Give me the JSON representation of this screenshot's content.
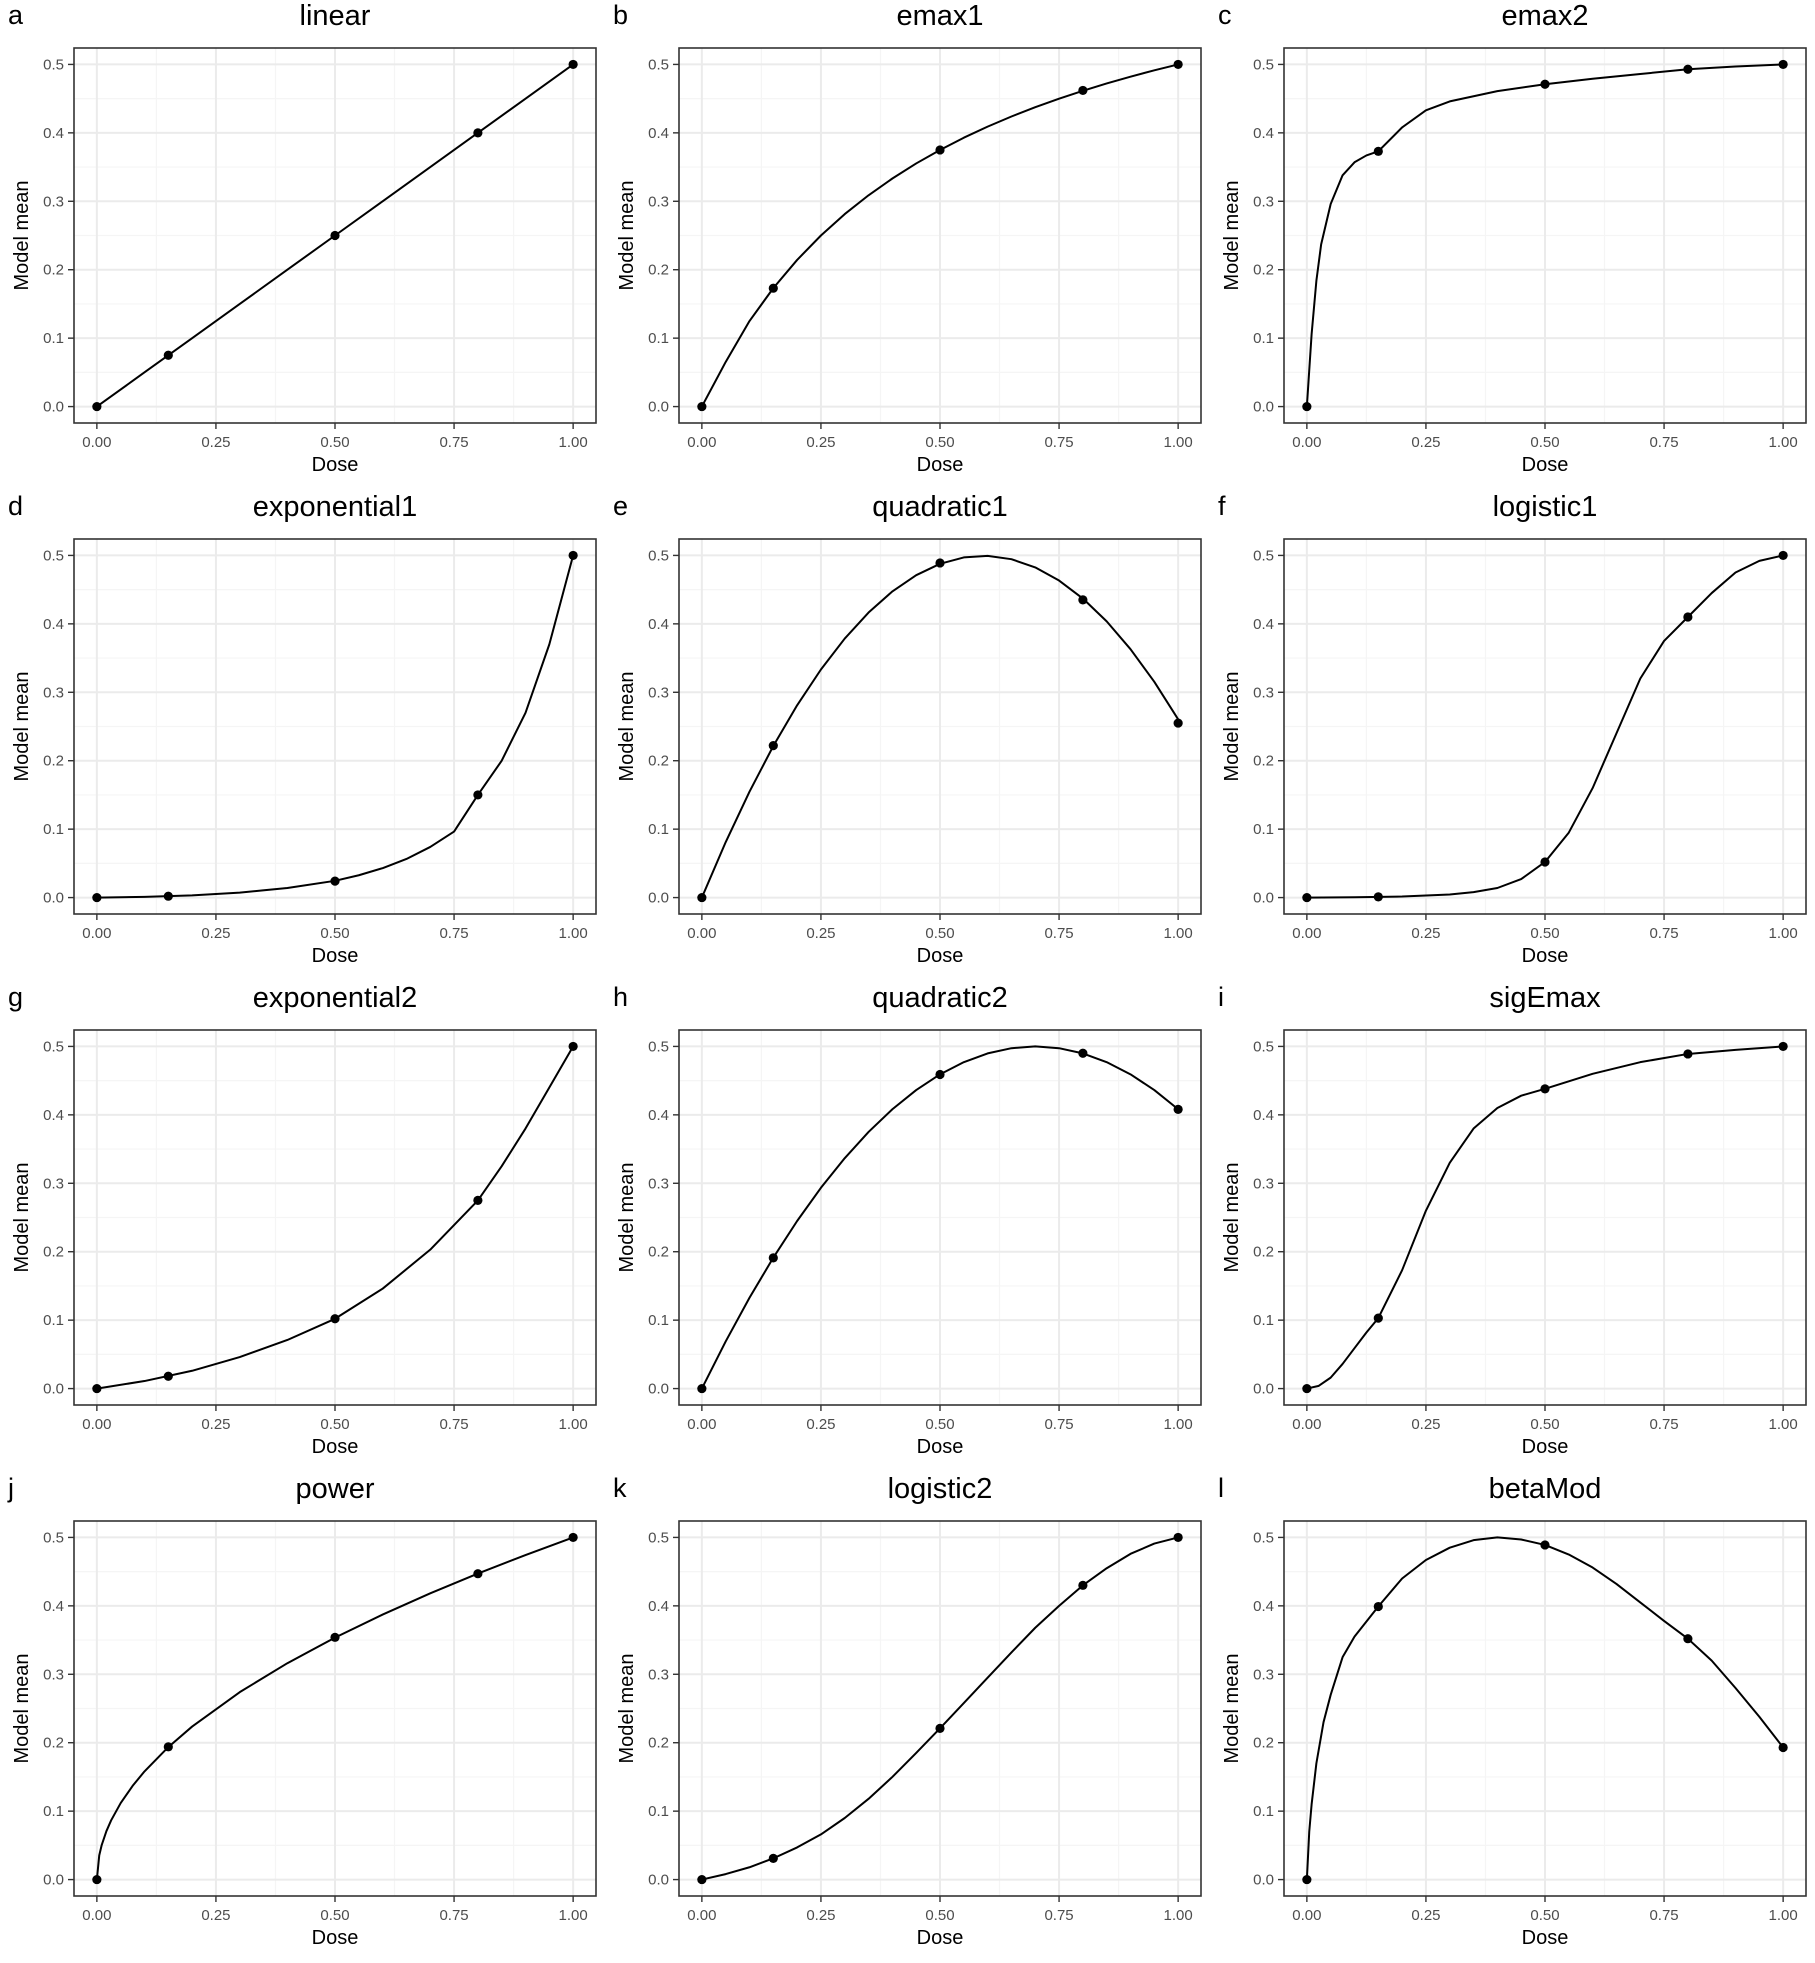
{
  "figure": {
    "xlabel": "Dose",
    "ylabel": "Model mean",
    "colors": {
      "background": "#ffffff",
      "panel_border": "#333333",
      "grid_major": "#ebebeb",
      "grid_minor": "#f5f5f5",
      "line": "#000000",
      "point": "#000000",
      "tick_text": "#4d4d4d"
    }
  },
  "chart_data": [
    {
      "panel": "a",
      "title": "linear",
      "type": "line",
      "xlabel": "Dose",
      "ylabel": "Model mean",
      "xlim": [
        0,
        1
      ],
      "ylim": [
        0,
        0.5
      ],
      "xticks": [
        0,
        0.25,
        0.5,
        0.75,
        1
      ],
      "xtick_labels": [
        "0.00",
        "0.25",
        "0.50",
        "0.75",
        "1.00"
      ],
      "yticks": [
        0,
        0.1,
        0.2,
        0.3,
        0.4,
        0.5
      ],
      "ytick_labels": [
        "0.0",
        "0.1",
        "0.2",
        "0.3",
        "0.4",
        "0.5"
      ],
      "grid": true,
      "points": {
        "x": [
          0,
          0.15,
          0.5,
          0.8,
          1
        ],
        "y": [
          0,
          0.075,
          0.25,
          0.4,
          0.5
        ]
      },
      "curve": {
        "x": [
          0,
          0.1,
          0.2,
          0.3,
          0.4,
          0.5,
          0.6,
          0.7,
          0.8,
          0.9,
          1
        ],
        "y": [
          0,
          0.05,
          0.1,
          0.15,
          0.2,
          0.25,
          0.3,
          0.35,
          0.4,
          0.45,
          0.5
        ]
      }
    },
    {
      "panel": "b",
      "title": "emax1",
      "type": "line",
      "xlabel": "Dose",
      "ylabel": "Model mean",
      "xlim": [
        0,
        1
      ],
      "ylim": [
        0,
        0.5
      ],
      "xticks": [
        0,
        0.25,
        0.5,
        0.75,
        1
      ],
      "xtick_labels": [
        "0.00",
        "0.25",
        "0.50",
        "0.75",
        "1.00"
      ],
      "yticks": [
        0,
        0.1,
        0.2,
        0.3,
        0.4,
        0.5
      ],
      "ytick_labels": [
        "0.0",
        "0.1",
        "0.2",
        "0.3",
        "0.4",
        "0.5"
      ],
      "grid": true,
      "points": {
        "x": [
          0,
          0.15,
          0.5,
          0.8,
          1
        ],
        "y": [
          0,
          0.173,
          0.375,
          0.462,
          0.5
        ]
      },
      "curve": {
        "x": [
          0,
          0.05,
          0.1,
          0.15,
          0.2,
          0.25,
          0.3,
          0.35,
          0.4,
          0.45,
          0.5,
          0.55,
          0.6,
          0.65,
          0.7,
          0.75,
          0.8,
          0.85,
          0.9,
          0.95,
          1
        ],
        "y": [
          0,
          0.0652,
          0.125,
          0.1731,
          0.2143,
          0.25,
          0.2813,
          0.3088,
          0.3333,
          0.3553,
          0.375,
          0.3929,
          0.4091,
          0.4239,
          0.4375,
          0.45,
          0.4615,
          0.4722,
          0.4821,
          0.4914,
          0.5
        ]
      }
    },
    {
      "panel": "c",
      "title": "emax2",
      "type": "line",
      "xlabel": "Dose",
      "ylabel": "Model mean",
      "xlim": [
        0,
        1
      ],
      "ylim": [
        0,
        0.5
      ],
      "xticks": [
        0,
        0.25,
        0.5,
        0.75,
        1
      ],
      "xtick_labels": [
        "0.00",
        "0.25",
        "0.50",
        "0.75",
        "1.00"
      ],
      "yticks": [
        0,
        0.1,
        0.2,
        0.3,
        0.4,
        0.5
      ],
      "ytick_labels": [
        "0.0",
        "0.1",
        "0.2",
        "0.3",
        "0.4",
        "0.5"
      ],
      "grid": true,
      "points": {
        "x": [
          0,
          0.15,
          0.5,
          0.8,
          1
        ],
        "y": [
          0,
          0.373,
          0.471,
          0.493,
          0.5
        ]
      },
      "curve": {
        "x": [
          0,
          0.01,
          0.02,
          0.03,
          0.05,
          0.075,
          0.1,
          0.125,
          0.15,
          0.2,
          0.25,
          0.3,
          0.4,
          0.5,
          0.6,
          0.7,
          0.8,
          0.9,
          1
        ],
        "y": [
          0,
          0.106,
          0.184,
          0.237,
          0.296,
          0.338,
          0.357,
          0.367,
          0.373,
          0.408,
          0.433,
          0.446,
          0.461,
          0.471,
          0.479,
          0.486,
          0.493,
          0.497,
          0.5
        ]
      }
    },
    {
      "panel": "d",
      "title": "exponential1",
      "type": "line",
      "xlabel": "Dose",
      "ylabel": "Model mean",
      "xlim": [
        0,
        1
      ],
      "ylim": [
        0,
        0.5
      ],
      "xticks": [
        0,
        0.25,
        0.5,
        0.75,
        1
      ],
      "xtick_labels": [
        "0.00",
        "0.25",
        "0.50",
        "0.75",
        "1.00"
      ],
      "yticks": [
        0,
        0.1,
        0.2,
        0.3,
        0.4,
        0.5
      ],
      "ytick_labels": [
        "0.0",
        "0.1",
        "0.2",
        "0.3",
        "0.4",
        "0.5"
      ],
      "grid": true,
      "points": {
        "x": [
          0,
          0.15,
          0.5,
          0.8,
          1
        ],
        "y": [
          0,
          0.002,
          0.024,
          0.15,
          0.5
        ]
      },
      "curve": {
        "x": [
          0,
          0.1,
          0.2,
          0.3,
          0.4,
          0.5,
          0.55,
          0.6,
          0.65,
          0.7,
          0.75,
          0.8,
          0.85,
          0.9,
          0.95,
          1
        ],
        "y": [
          0,
          0.0011,
          0.0033,
          0.0073,
          0.014,
          0.0245,
          0.0326,
          0.043,
          0.0564,
          0.074,
          0.0965,
          0.15,
          0.2,
          0.27,
          0.37,
          0.5
        ]
      }
    },
    {
      "panel": "e",
      "title": "quadratic1",
      "type": "line",
      "xlabel": "Dose",
      "ylabel": "Model mean",
      "xlim": [
        0,
        1
      ],
      "ylim": [
        0,
        0.5
      ],
      "xticks": [
        0,
        0.25,
        0.5,
        0.75,
        1
      ],
      "xtick_labels": [
        "0.00",
        "0.25",
        "0.50",
        "0.75",
        "1.00"
      ],
      "yticks": [
        0,
        0.1,
        0.2,
        0.3,
        0.4,
        0.5
      ],
      "ytick_labels": [
        "0.0",
        "0.1",
        "0.2",
        "0.3",
        "0.4",
        "0.5"
      ],
      "grid": true,
      "points": {
        "x": [
          0,
          0.15,
          0.5,
          0.8,
          1
        ],
        "y": [
          0,
          0.222,
          0.489,
          0.435,
          0.255
        ]
      },
      "curve": {
        "x": [
          0,
          0.05,
          0.1,
          0.15,
          0.2,
          0.25,
          0.3,
          0.35,
          0.4,
          0.45,
          0.5,
          0.55,
          0.6,
          0.65,
          0.7,
          0.75,
          0.8,
          0.85,
          0.9,
          0.95,
          1
        ],
        "y": [
          0,
          0.081,
          0.1548,
          0.2215,
          0.281,
          0.3333,
          0.3785,
          0.4165,
          0.4474,
          0.4711,
          0.4877,
          0.4971,
          0.4994,
          0.4945,
          0.4825,
          0.4633,
          0.437,
          0.4036,
          0.363,
          0.3153,
          0.2605
        ]
      }
    },
    {
      "panel": "f",
      "title": "logistic1",
      "type": "line",
      "xlabel": "Dose",
      "ylabel": "Model mean",
      "xlim": [
        0,
        1
      ],
      "ylim": [
        0,
        0.5
      ],
      "xticks": [
        0,
        0.25,
        0.5,
        0.75,
        1
      ],
      "xtick_labels": [
        "0.00",
        "0.25",
        "0.50",
        "0.75",
        "1.00"
      ],
      "yticks": [
        0,
        0.1,
        0.2,
        0.3,
        0.4,
        0.5
      ],
      "ytick_labels": [
        "0.0",
        "0.1",
        "0.2",
        "0.3",
        "0.4",
        "0.5"
      ],
      "grid": true,
      "points": {
        "x": [
          0,
          0.15,
          0.5,
          0.8,
          1
        ],
        "y": [
          0,
          0.001,
          0.052,
          0.41,
          0.5
        ]
      },
      "curve": {
        "x": [
          0,
          0.1,
          0.2,
          0.3,
          0.35,
          0.4,
          0.45,
          0.5,
          0.55,
          0.6,
          0.65,
          0.7,
          0.75,
          0.8,
          0.85,
          0.9,
          0.95,
          1
        ],
        "y": [
          0,
          0.0005,
          0.0015,
          0.0045,
          0.008,
          0.014,
          0.027,
          0.052,
          0.095,
          0.16,
          0.24,
          0.32,
          0.375,
          0.41,
          0.445,
          0.475,
          0.492,
          0.5
        ]
      }
    },
    {
      "panel": "g",
      "title": "exponential2",
      "type": "line",
      "xlabel": "Dose",
      "ylabel": "Model mean",
      "xlim": [
        0,
        1
      ],
      "ylim": [
        0,
        0.5
      ],
      "xticks": [
        0,
        0.25,
        0.5,
        0.75,
        1
      ],
      "xtick_labels": [
        "0.00",
        "0.25",
        "0.50",
        "0.75",
        "1.00"
      ],
      "yticks": [
        0,
        0.1,
        0.2,
        0.3,
        0.4,
        0.5
      ],
      "ytick_labels": [
        "0.0",
        "0.1",
        "0.2",
        "0.3",
        "0.4",
        "0.5"
      ],
      "grid": true,
      "points": {
        "x": [
          0,
          0.15,
          0.5,
          0.8,
          1
        ],
        "y": [
          0,
          0.018,
          0.102,
          0.275,
          0.5
        ]
      },
      "curve": {
        "x": [
          0,
          0.1,
          0.2,
          0.3,
          0.4,
          0.5,
          0.6,
          0.7,
          0.8,
          0.85,
          0.9,
          0.95,
          1
        ],
        "y": [
          0,
          0.011,
          0.026,
          0.046,
          0.071,
          0.102,
          0.146,
          0.203,
          0.275,
          0.325,
          0.38,
          0.44,
          0.5
        ]
      }
    },
    {
      "panel": "h",
      "title": "quadratic2",
      "type": "line",
      "xlabel": "Dose",
      "ylabel": "Model mean",
      "xlim": [
        0,
        1
      ],
      "ylim": [
        0,
        0.5
      ],
      "xticks": [
        0,
        0.25,
        0.5,
        0.75,
        1
      ],
      "xtick_labels": [
        "0.00",
        "0.25",
        "0.50",
        "0.75",
        "1.00"
      ],
      "yticks": [
        0,
        0.1,
        0.2,
        0.3,
        0.4,
        0.5
      ],
      "ytick_labels": [
        "0.0",
        "0.1",
        "0.2",
        "0.3",
        "0.4",
        "0.5"
      ],
      "grid": true,
      "points": {
        "x": [
          0,
          0.15,
          0.5,
          0.8,
          1
        ],
        "y": [
          0,
          0.191,
          0.459,
          0.49,
          0.408
        ]
      },
      "curve": {
        "x": [
          0,
          0.05,
          0.1,
          0.15,
          0.2,
          0.25,
          0.3,
          0.35,
          0.4,
          0.45,
          0.5,
          0.55,
          0.6,
          0.65,
          0.7,
          0.75,
          0.8,
          0.85,
          0.9,
          0.95,
          1
        ],
        "y": [
          0,
          0.0689,
          0.1327,
          0.1913,
          0.2449,
          0.2934,
          0.3367,
          0.375,
          0.4082,
          0.4362,
          0.4592,
          0.477,
          0.4898,
          0.4974,
          0.5,
          0.4974,
          0.4898,
          0.477,
          0.4592,
          0.4362,
          0.4082
        ]
      }
    },
    {
      "panel": "i",
      "title": "sigEmax",
      "type": "line",
      "xlabel": "Dose",
      "ylabel": "Model mean",
      "xlim": [
        0,
        1
      ],
      "ylim": [
        0,
        0.5
      ],
      "xticks": [
        0,
        0.25,
        0.5,
        0.75,
        1
      ],
      "xtick_labels": [
        "0.00",
        "0.25",
        "0.50",
        "0.75",
        "1.00"
      ],
      "yticks": [
        0,
        0.1,
        0.2,
        0.3,
        0.4,
        0.5
      ],
      "ytick_labels": [
        "0.0",
        "0.1",
        "0.2",
        "0.3",
        "0.4",
        "0.5"
      ],
      "grid": true,
      "points": {
        "x": [
          0,
          0.15,
          0.5,
          0.8,
          1
        ],
        "y": [
          0,
          0.103,
          0.438,
          0.489,
          0.5
        ]
      },
      "curve": {
        "x": [
          0,
          0.025,
          0.05,
          0.075,
          0.1,
          0.125,
          0.15,
          0.2,
          0.25,
          0.3,
          0.35,
          0.4,
          0.45,
          0.5,
          0.6,
          0.7,
          0.8,
          0.9,
          1
        ],
        "y": [
          0,
          0.004,
          0.016,
          0.036,
          0.059,
          0.082,
          0.103,
          0.173,
          0.26,
          0.33,
          0.38,
          0.41,
          0.428,
          0.438,
          0.46,
          0.477,
          0.489,
          0.495,
          0.5
        ]
      }
    },
    {
      "panel": "j",
      "title": "power",
      "type": "line",
      "xlabel": "Dose",
      "ylabel": "Model mean",
      "xlim": [
        0,
        1
      ],
      "ylim": [
        0,
        0.5
      ],
      "xticks": [
        0,
        0.25,
        0.5,
        0.75,
        1
      ],
      "xtick_labels": [
        "0.00",
        "0.25",
        "0.50",
        "0.75",
        "1.00"
      ],
      "yticks": [
        0,
        0.1,
        0.2,
        0.3,
        0.4,
        0.5
      ],
      "ytick_labels": [
        "0.0",
        "0.1",
        "0.2",
        "0.3",
        "0.4",
        "0.5"
      ],
      "grid": true,
      "points": {
        "x": [
          0,
          0.15,
          0.5,
          0.8,
          1
        ],
        "y": [
          0,
          0.194,
          0.354,
          0.447,
          0.5
        ]
      },
      "curve": {
        "x": [
          0,
          0.005,
          0.01,
          0.02,
          0.03,
          0.05,
          0.075,
          0.1,
          0.15,
          0.2,
          0.3,
          0.4,
          0.5,
          0.6,
          0.7,
          0.8,
          0.9,
          1
        ],
        "y": [
          0,
          0.0354,
          0.05,
          0.0707,
          0.0866,
          0.1118,
          0.1369,
          0.1581,
          0.1936,
          0.2236,
          0.2739,
          0.3162,
          0.3536,
          0.3873,
          0.4183,
          0.4472,
          0.4743,
          0.5
        ]
      }
    },
    {
      "panel": "k",
      "title": "logistic2",
      "type": "line",
      "xlabel": "Dose",
      "ylabel": "Model mean",
      "xlim": [
        0,
        1
      ],
      "ylim": [
        0,
        0.5
      ],
      "xticks": [
        0,
        0.25,
        0.5,
        0.75,
        1
      ],
      "xtick_labels": [
        "0.00",
        "0.25",
        "0.50",
        "0.75",
        "1.00"
      ],
      "yticks": [
        0,
        0.1,
        0.2,
        0.3,
        0.4,
        0.5
      ],
      "ytick_labels": [
        "0.0",
        "0.1",
        "0.2",
        "0.3",
        "0.4",
        "0.5"
      ],
      "grid": true,
      "points": {
        "x": [
          0,
          0.15,
          0.5,
          0.8,
          1
        ],
        "y": [
          0,
          0.031,
          0.221,
          0.43,
          0.5
        ]
      },
      "curve": {
        "x": [
          0,
          0.05,
          0.1,
          0.15,
          0.2,
          0.25,
          0.3,
          0.35,
          0.4,
          0.45,
          0.5,
          0.55,
          0.6,
          0.65,
          0.7,
          0.75,
          0.8,
          0.85,
          0.9,
          0.95,
          1
        ],
        "y": [
          0,
          0.008,
          0.018,
          0.031,
          0.047,
          0.066,
          0.09,
          0.118,
          0.15,
          0.185,
          0.221,
          0.258,
          0.295,
          0.332,
          0.368,
          0.4,
          0.43,
          0.455,
          0.476,
          0.491,
          0.5
        ]
      }
    },
    {
      "panel": "l",
      "title": "betaMod",
      "type": "line",
      "xlabel": "Dose",
      "ylabel": "Model mean",
      "xlim": [
        0,
        1
      ],
      "ylim": [
        0,
        0.5
      ],
      "xticks": [
        0,
        0.25,
        0.5,
        0.75,
        1
      ],
      "xtick_labels": [
        "0.00",
        "0.25",
        "0.50",
        "0.75",
        "1.00"
      ],
      "yticks": [
        0,
        0.1,
        0.2,
        0.3,
        0.4,
        0.5
      ],
      "ytick_labels": [
        "0.0",
        "0.1",
        "0.2",
        "0.3",
        "0.4",
        "0.5"
      ],
      "grid": true,
      "points": {
        "x": [
          0,
          0.15,
          0.5,
          0.8,
          1
        ],
        "y": [
          0,
          0.399,
          0.489,
          0.352,
          0.193
        ]
      },
      "curve": {
        "x": [
          0,
          0.005,
          0.01,
          0.02,
          0.035,
          0.05,
          0.075,
          0.1,
          0.15,
          0.2,
          0.25,
          0.3,
          0.35,
          0.4,
          0.45,
          0.5,
          0.55,
          0.6,
          0.65,
          0.7,
          0.75,
          0.8,
          0.85,
          0.9,
          0.95,
          1
        ],
        "y": [
          0,
          0.07,
          0.11,
          0.17,
          0.23,
          0.27,
          0.325,
          0.355,
          0.399,
          0.44,
          0.467,
          0.485,
          0.496,
          0.5,
          0.497,
          0.489,
          0.475,
          0.456,
          0.432,
          0.405,
          0.378,
          0.352,
          0.32,
          0.28,
          0.238,
          0.193
        ]
      }
    }
  ]
}
